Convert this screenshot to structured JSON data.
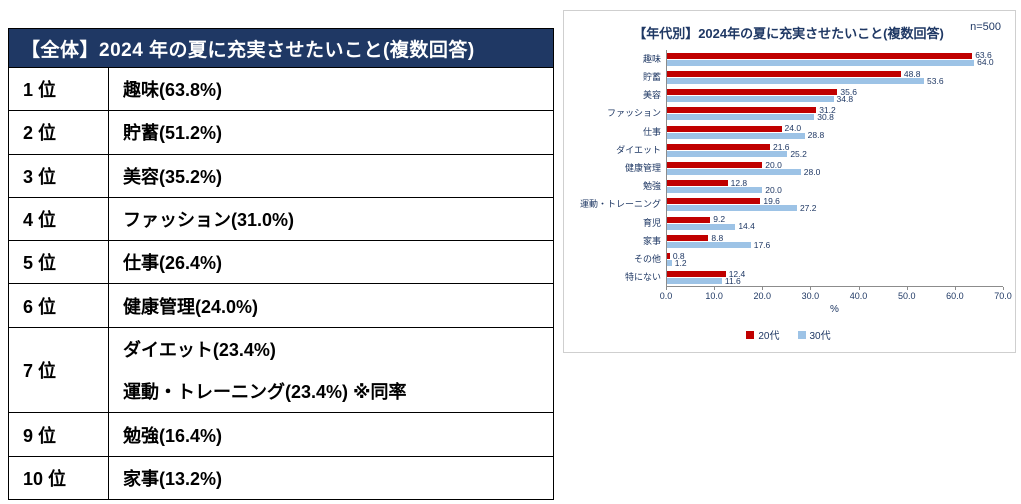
{
  "colors": {
    "navy": "#1F3864",
    "table_header_bg": "#1F3864",
    "series_20s_red": "#C00000",
    "series_30s_blue": "#9DC3E6",
    "chart_border": "#CFCFCF"
  },
  "table": {
    "header": "【全体】2024 年の夏に充実させたいこと(複数回答)",
    "rows": [
      {
        "rank": "1 位",
        "lines": [
          "趣味(63.8%)"
        ]
      },
      {
        "rank": "2 位",
        "lines": [
          "貯蓄(51.2%)"
        ]
      },
      {
        "rank": "3 位",
        "lines": [
          "美容(35.2%)"
        ]
      },
      {
        "rank": "4 位",
        "lines": [
          "ファッション(31.0%)"
        ]
      },
      {
        "rank": "5 位",
        "lines": [
          "仕事(26.4%)"
        ]
      },
      {
        "rank": "6 位",
        "lines": [
          "健康管理(24.0%)"
        ]
      },
      {
        "rank": "7 位",
        "lines": [
          "ダイエット(23.4%)",
          "運動・トレーニング(23.4%) ※同率"
        ]
      },
      {
        "rank": "9 位",
        "lines": [
          "勉強(16.4%)"
        ]
      },
      {
        "rank": "10 位",
        "lines": [
          "家事(13.2%)"
        ]
      }
    ]
  },
  "chart_data": {
    "type": "bar",
    "orientation": "horizontal",
    "title": "【年代別】2024年の夏に充実させたいこと(複数回答)",
    "n_label": "n=500",
    "categories": [
      "趣味",
      "貯蓄",
      "美容",
      "ファッション",
      "仕事",
      "ダイエット",
      "健康管理",
      "勉強",
      "運動・トレーニング",
      "育児",
      "家事",
      "その他",
      "特にない"
    ],
    "series": [
      {
        "name": "20代",
        "color": "#C00000",
        "values": [
          63.6,
          48.8,
          35.6,
          31.2,
          24.0,
          21.6,
          20.0,
          12.8,
          19.6,
          9.2,
          8.8,
          0.8,
          12.4
        ]
      },
      {
        "name": "30代",
        "color": "#9DC3E6",
        "values": [
          64.0,
          53.6,
          34.8,
          30.8,
          28.8,
          25.2,
          28.0,
          20.0,
          27.2,
          14.4,
          17.6,
          1.2,
          11.6
        ]
      }
    ],
    "xlim": [
      0,
      70
    ],
    "xtick_labels": [
      "0.0",
      "10.0",
      "20.0",
      "30.0",
      "40.0",
      "50.0",
      "60.0",
      "70.0"
    ],
    "xlabel": "%",
    "grid": false,
    "legend_position": "bottom"
  }
}
